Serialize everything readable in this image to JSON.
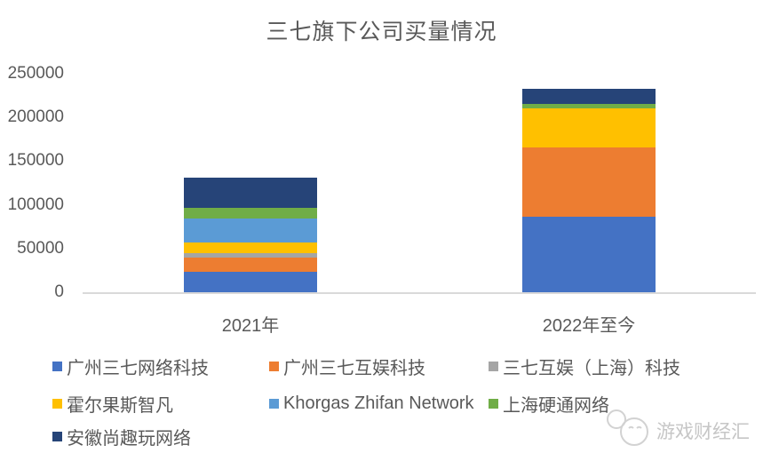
{
  "title": "三七旗下公司买量情况",
  "watermark": {
    "text": "游戏财经汇"
  },
  "colors": {
    "axis_line": "#d9d9d9",
    "text_gray": "#595959",
    "watermark_gray": "#c6c6c6"
  },
  "chart_data": {
    "type": "bar",
    "stacked": true,
    "title": "三七旗下公司买量情况",
    "categories": [
      "2021年",
      "2022年至今"
    ],
    "series": [
      {
        "name": "广州三七网络科技",
        "color": "#4472C4",
        "values": [
          23500,
          86500
        ]
      },
      {
        "name": "广州三七互娱科技",
        "color": "#ED7D31",
        "values": [
          16500,
          79000
        ]
      },
      {
        "name": "三七互娱（上海）科技",
        "color": "#A5A5A5",
        "values": [
          4500,
          0
        ]
      },
      {
        "name": "霍尔果斯智凡",
        "color": "#FFC000",
        "values": [
          12000,
          44500
        ]
      },
      {
        "name": "Khorgas Zhifan Network",
        "color": "#5B9BD5",
        "values": [
          28000,
          0
        ]
      },
      {
        "name": "上海硬通网络",
        "color": "#70AD47",
        "values": [
          12000,
          5000
        ]
      },
      {
        "name": "安徽尚趣玩网络",
        "color": "#264478",
        "values": [
          34500,
          18000
        ]
      }
    ],
    "xlabel": "",
    "ylabel": "",
    "ylim": [
      0,
      250000
    ],
    "ytick_step": 50000,
    "yticks": [
      "0",
      "50000",
      "100000",
      "150000",
      "200000",
      "250000"
    ],
    "grid": false,
    "legend_position": "bottom"
  }
}
